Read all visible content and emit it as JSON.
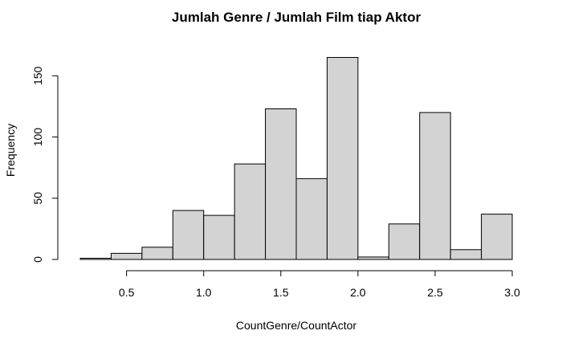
{
  "chart_data": {
    "type": "bar",
    "subtype": "histogram",
    "title": "Jumlah Genre / Jumlah Film tiap Aktor",
    "xlabel": "CountGenre/CountActor",
    "ylabel": "Frequency",
    "bin_edges": [
      0.2,
      0.4,
      0.6,
      0.8,
      1.0,
      1.2,
      1.4,
      1.6,
      1.8,
      2.0,
      2.2,
      2.4,
      2.6,
      2.8,
      3.0
    ],
    "values": [
      1,
      5,
      10,
      40,
      36,
      78,
      123,
      66,
      165,
      2,
      29,
      120,
      8,
      37
    ],
    "xlim": [
      0.2,
      3.0
    ],
    "ylim": [
      0,
      165
    ],
    "x_ticks": [
      0.5,
      1.0,
      1.5,
      2.0,
      2.5,
      3.0
    ],
    "x_tick_labels": [
      "0.5",
      "1.0",
      "1.5",
      "2.0",
      "2.5",
      "3.0"
    ],
    "y_ticks": [
      0,
      50,
      100,
      150
    ],
    "y_tick_labels": [
      "0",
      "50",
      "100",
      "150"
    ],
    "grid": false,
    "colors": {
      "bar_fill": "#d3d3d3",
      "bar_stroke": "#000000"
    }
  }
}
